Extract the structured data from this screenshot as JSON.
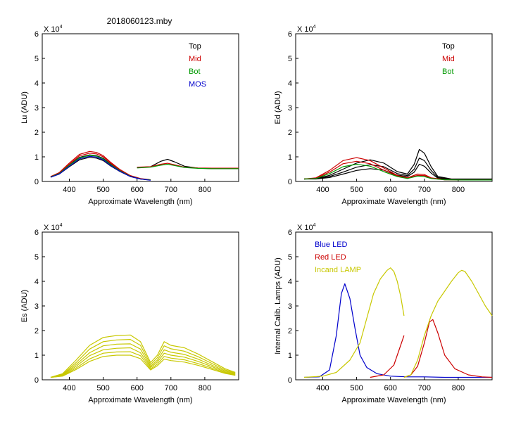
{
  "figure_title": "2018060123.mby",
  "chart_data": [
    {
      "type": "line",
      "panel": "top-left",
      "ylabel": "Lu (ADU)",
      "xlabel": "Approximate Wavelength (nm)",
      "multiplier": "X 10",
      "exponent": "4",
      "xlim": [
        320,
        900
      ],
      "ylim": [
        0,
        6
      ],
      "xticks": [
        400,
        500,
        600,
        700,
        800
      ],
      "yticks": [
        0,
        1,
        2,
        3,
        4,
        5,
        6
      ],
      "legend_position": "top-right",
      "legend": [
        {
          "label": "Top",
          "color": "#000000"
        },
        {
          "label": "Mid",
          "color": "#cc0000"
        },
        {
          "label": "Bot",
          "color": "#009900"
        },
        {
          "label": "MOS",
          "color": "#0000cc"
        }
      ],
      "series": [
        {
          "name": "Top",
          "color": "#000000",
          "x": [
            345,
            370,
            400,
            430,
            460,
            480,
            500,
            520,
            550,
            580,
            610,
            640
          ],
          "values": [
            0.18,
            0.3,
            0.6,
            0.88,
            0.98,
            0.95,
            0.85,
            0.65,
            0.4,
            0.2,
            0.1,
            0.06
          ]
        },
        {
          "name": "Top",
          "color": "#000000",
          "x": [
            345,
            370,
            400,
            430,
            460,
            480,
            500,
            520,
            550,
            580,
            610,
            640
          ],
          "values": [
            0.2,
            0.34,
            0.68,
            0.98,
            1.08,
            1.05,
            0.94,
            0.72,
            0.44,
            0.22,
            0.11,
            0.06
          ]
        },
        {
          "name": "Mid",
          "color": "#cc0000",
          "x": [
            345,
            370,
            400,
            430,
            460,
            480,
            500,
            520,
            550,
            580,
            610,
            640
          ],
          "values": [
            0.2,
            0.36,
            0.75,
            1.1,
            1.22,
            1.18,
            1.05,
            0.8,
            0.48,
            0.24,
            0.12,
            0.07
          ]
        },
        {
          "name": "Mid",
          "color": "#cc0000",
          "x": [
            345,
            370,
            400,
            430,
            460,
            480,
            500,
            520,
            550,
            580,
            610,
            640
          ],
          "values": [
            0.19,
            0.34,
            0.7,
            1.04,
            1.15,
            1.12,
            1.0,
            0.76,
            0.46,
            0.23,
            0.11,
            0.06
          ]
        },
        {
          "name": "Bot",
          "color": "#009900",
          "x": [
            345,
            370,
            400,
            430,
            460,
            480,
            500,
            520,
            550,
            580,
            610,
            640
          ],
          "values": [
            0.18,
            0.32,
            0.66,
            0.96,
            1.06,
            1.03,
            0.92,
            0.7,
            0.43,
            0.21,
            0.1,
            0.06
          ]
        },
        {
          "name": "MOS",
          "color": "#0000cc",
          "x": [
            345,
            370,
            400,
            430,
            460,
            480,
            500,
            520,
            550,
            580,
            610,
            640
          ],
          "values": [
            0.17,
            0.3,
            0.62,
            0.92,
            1.02,
            0.99,
            0.88,
            0.67,
            0.41,
            0.2,
            0.1,
            0.05
          ]
        },
        {
          "name": "Top",
          "color": "#000000",
          "x": [
            600,
            640,
            670,
            690,
            710,
            740,
            780,
            820,
            860,
            900
          ],
          "values": [
            0.56,
            0.6,
            0.82,
            0.9,
            0.8,
            0.62,
            0.54,
            0.52,
            0.52,
            0.52
          ]
        },
        {
          "name": "Mid",
          "color": "#cc0000",
          "x": [
            600,
            640,
            670,
            690,
            710,
            740,
            780,
            820,
            860,
            900
          ],
          "values": [
            0.58,
            0.6,
            0.7,
            0.74,
            0.68,
            0.58,
            0.55,
            0.54,
            0.54,
            0.54
          ]
        },
        {
          "name": "Bot",
          "color": "#009900",
          "x": [
            600,
            640,
            670,
            690,
            710,
            740,
            780,
            820,
            860,
            900
          ],
          "values": [
            0.55,
            0.58,
            0.66,
            0.7,
            0.65,
            0.57,
            0.53,
            0.52,
            0.52,
            0.52
          ]
        }
      ]
    },
    {
      "type": "line",
      "panel": "top-right",
      "ylabel": "Ed  (ADU)",
      "xlabel": "Approximate Wavelength (nm)",
      "multiplier": "X 10",
      "exponent": "4",
      "xlim": [
        320,
        900
      ],
      "ylim": [
        0,
        6
      ],
      "xticks": [
        400,
        500,
        600,
        700,
        800
      ],
      "yticks": [
        0,
        1,
        2,
        3,
        4,
        5,
        6
      ],
      "legend_position": "top-right",
      "legend": [
        {
          "label": "Top",
          "color": "#000000"
        },
        {
          "label": "Mid",
          "color": "#cc0000"
        },
        {
          "label": "Bot",
          "color": "#009900"
        }
      ],
      "series": [
        {
          "name": "Top",
          "color": "#000000",
          "x": [
            345,
            380,
            420,
            460,
            500,
            540,
            580,
            620,
            650,
            670,
            685,
            700,
            720,
            740,
            780,
            840,
            900
          ],
          "values": [
            0.1,
            0.12,
            0.25,
            0.5,
            0.75,
            0.88,
            0.75,
            0.4,
            0.3,
            0.7,
            1.3,
            1.15,
            0.6,
            0.2,
            0.1,
            0.1,
            0.1
          ]
        },
        {
          "name": "Top",
          "color": "#000000",
          "x": [
            345,
            380,
            420,
            460,
            500,
            540,
            580,
            620,
            650,
            670,
            685,
            700,
            720,
            740,
            780,
            840,
            900
          ],
          "values": [
            0.1,
            0.11,
            0.2,
            0.38,
            0.58,
            0.68,
            0.6,
            0.32,
            0.24,
            0.5,
            0.95,
            0.85,
            0.45,
            0.16,
            0.09,
            0.09,
            0.09
          ]
        },
        {
          "name": "Top",
          "color": "#000000",
          "x": [
            345,
            380,
            420,
            460,
            500,
            540,
            580,
            620,
            650,
            670,
            685,
            700,
            720,
            740,
            780,
            840,
            900
          ],
          "values": [
            0.1,
            0.1,
            0.16,
            0.3,
            0.45,
            0.52,
            0.46,
            0.26,
            0.2,
            0.38,
            0.7,
            0.62,
            0.34,
            0.13,
            0.08,
            0.08,
            0.08
          ]
        },
        {
          "name": "Mid",
          "color": "#cc0000",
          "x": [
            345,
            380,
            420,
            460,
            500,
            540,
            580,
            620,
            650,
            680,
            700,
            720,
            760,
            820,
            900
          ],
          "values": [
            0.1,
            0.15,
            0.45,
            0.85,
            0.97,
            0.85,
            0.55,
            0.25,
            0.15,
            0.3,
            0.28,
            0.15,
            0.08,
            0.06,
            0.06
          ]
        },
        {
          "name": "Mid",
          "color": "#cc0000",
          "x": [
            345,
            380,
            420,
            460,
            500,
            540,
            580,
            620,
            650,
            680,
            700,
            720,
            760,
            820,
            900
          ],
          "values": [
            0.1,
            0.13,
            0.38,
            0.72,
            0.82,
            0.72,
            0.46,
            0.22,
            0.13,
            0.25,
            0.24,
            0.13,
            0.07,
            0.06,
            0.06
          ]
        },
        {
          "name": "Bot",
          "color": "#009900",
          "x": [
            345,
            380,
            420,
            460,
            500,
            540,
            580,
            620,
            650,
            680,
            700,
            720,
            760,
            820,
            900
          ],
          "values": [
            0.1,
            0.12,
            0.32,
            0.6,
            0.7,
            0.62,
            0.4,
            0.2,
            0.12,
            0.22,
            0.2,
            0.12,
            0.07,
            0.06,
            0.06
          ]
        }
      ]
    },
    {
      "type": "line",
      "panel": "bottom-left",
      "ylabel": "Es  (ADU)",
      "xlabel": "Approximate Wavelength (nm)",
      "multiplier": "X 10",
      "exponent": "4",
      "xlim": [
        320,
        900
      ],
      "ylim": [
        0,
        6
      ],
      "xticks": [
        400,
        500,
        600,
        700,
        800
      ],
      "yticks": [
        0,
        1,
        2,
        3,
        4,
        5,
        6
      ],
      "series": [
        {
          "name": "Es",
          "color": "#c8c800",
          "x": [
            345,
            380,
            420,
            460,
            500,
            540,
            580,
            610,
            640,
            660,
            680,
            700,
            740,
            780,
            820,
            860,
            890
          ],
          "values": [
            0.1,
            0.25,
            0.8,
            1.4,
            1.72,
            1.8,
            1.82,
            1.55,
            0.7,
            1.0,
            1.55,
            1.4,
            1.3,
            1.05,
            0.75,
            0.45,
            0.3
          ]
        },
        {
          "name": "Es",
          "color": "#c8c800",
          "x": [
            345,
            380,
            420,
            460,
            500,
            540,
            580,
            610,
            640,
            660,
            680,
            700,
            740,
            780,
            820,
            860,
            890
          ],
          "values": [
            0.1,
            0.22,
            0.7,
            1.25,
            1.55,
            1.62,
            1.64,
            1.4,
            0.62,
            0.9,
            1.38,
            1.26,
            1.16,
            0.94,
            0.67,
            0.4,
            0.27
          ]
        },
        {
          "name": "Es",
          "color": "#c8c800",
          "x": [
            345,
            380,
            420,
            460,
            500,
            540,
            580,
            610,
            640,
            660,
            680,
            700,
            740,
            780,
            820,
            860,
            890
          ],
          "values": [
            0.1,
            0.2,
            0.62,
            1.1,
            1.38,
            1.45,
            1.46,
            1.25,
            0.55,
            0.8,
            1.22,
            1.12,
            1.03,
            0.84,
            0.6,
            0.36,
            0.24
          ]
        },
        {
          "name": "Es",
          "color": "#c8c800",
          "x": [
            345,
            380,
            420,
            460,
            500,
            540,
            580,
            610,
            640,
            660,
            680,
            700,
            740,
            780,
            820,
            860,
            890
          ],
          "values": [
            0.1,
            0.18,
            0.55,
            0.98,
            1.22,
            1.28,
            1.3,
            1.1,
            0.5,
            0.72,
            1.08,
            1.0,
            0.92,
            0.75,
            0.54,
            0.32,
            0.22
          ]
        },
        {
          "name": "Es",
          "color": "#c8c800",
          "x": [
            345,
            380,
            420,
            460,
            500,
            540,
            580,
            610,
            640,
            660,
            680,
            700,
            740,
            780,
            820,
            860,
            890
          ],
          "values": [
            0.1,
            0.16,
            0.48,
            0.85,
            1.08,
            1.13,
            1.14,
            0.98,
            0.44,
            0.64,
            0.95,
            0.88,
            0.81,
            0.66,
            0.48,
            0.29,
            0.2
          ]
        },
        {
          "name": "Es",
          "color": "#c8c800",
          "x": [
            345,
            380,
            420,
            460,
            500,
            540,
            580,
            610,
            640,
            660,
            680,
            700,
            740,
            780,
            820,
            860,
            890
          ],
          "values": [
            0.1,
            0.15,
            0.42,
            0.75,
            0.95,
            1.0,
            1.0,
            0.86,
            0.4,
            0.57,
            0.84,
            0.78,
            0.72,
            0.59,
            0.43,
            0.26,
            0.18
          ]
        }
      ]
    },
    {
      "type": "line",
      "panel": "bottom-right",
      "ylabel": "Internal Calib. Lamps (ADU)",
      "xlabel": "Approximate Wavelength (nm)",
      "multiplier": "X 10",
      "exponent": "4",
      "xlim": [
        320,
        900
      ],
      "ylim": [
        0,
        6
      ],
      "xticks": [
        400,
        500,
        600,
        700,
        800
      ],
      "yticks": [
        0,
        1,
        2,
        3,
        4,
        5,
        6
      ],
      "legend_position": "top-left",
      "legend": [
        {
          "label": "Blue LED",
          "color": "#0000cc"
        },
        {
          "label": "Red LED",
          "color": "#cc0000"
        },
        {
          "label": "Incand LAMP",
          "color": "#c8c800"
        }
      ],
      "series": [
        {
          "name": "Blue LED",
          "color": "#0000cc",
          "x": [
            345,
            390,
            420,
            440,
            455,
            465,
            480,
            495,
            510,
            530,
            560,
            600,
            650,
            700,
            760,
            820,
            900
          ],
          "values": [
            0.1,
            0.12,
            0.4,
            1.8,
            3.5,
            3.9,
            3.3,
            2.1,
            1.0,
            0.5,
            0.25,
            0.15,
            0.12,
            0.12,
            0.1,
            0.1,
            0.1
          ]
        },
        {
          "name": "Red LED",
          "color": "#cc0000",
          "x": [
            540,
            580,
            610,
            625,
            640
          ],
          "values": [
            0.1,
            0.2,
            0.6,
            1.2,
            1.8
          ]
        },
        {
          "name": "Red LED",
          "color": "#cc0000",
          "x": [
            640,
            660,
            680,
            700,
            715,
            725,
            740,
            760,
            790,
            830,
            870,
            900
          ],
          "values": [
            0.1,
            0.2,
            0.55,
            1.5,
            2.35,
            2.45,
            1.9,
            1.0,
            0.45,
            0.2,
            0.12,
            0.1
          ]
        },
        {
          "name": "Incand LAMP",
          "color": "#c8c800",
          "x": [
            345,
            400,
            440,
            480,
            510,
            530,
            550,
            570,
            590,
            600,
            610,
            620,
            630,
            640
          ],
          "values": [
            0.1,
            0.15,
            0.3,
            0.8,
            1.5,
            2.5,
            3.5,
            4.1,
            4.45,
            4.55,
            4.4,
            4.0,
            3.4,
            2.6
          ]
        },
        {
          "name": "Incand LAMP",
          "color": "#c8c800",
          "x": [
            640,
            660,
            680,
            700,
            720,
            740,
            760,
            780,
            800,
            810,
            820,
            840,
            860,
            880,
            900
          ],
          "values": [
            0.1,
            0.2,
            0.8,
            1.8,
            2.6,
            3.2,
            3.6,
            4.0,
            4.35,
            4.45,
            4.4,
            4.0,
            3.5,
            3.0,
            2.6
          ]
        }
      ]
    }
  ]
}
